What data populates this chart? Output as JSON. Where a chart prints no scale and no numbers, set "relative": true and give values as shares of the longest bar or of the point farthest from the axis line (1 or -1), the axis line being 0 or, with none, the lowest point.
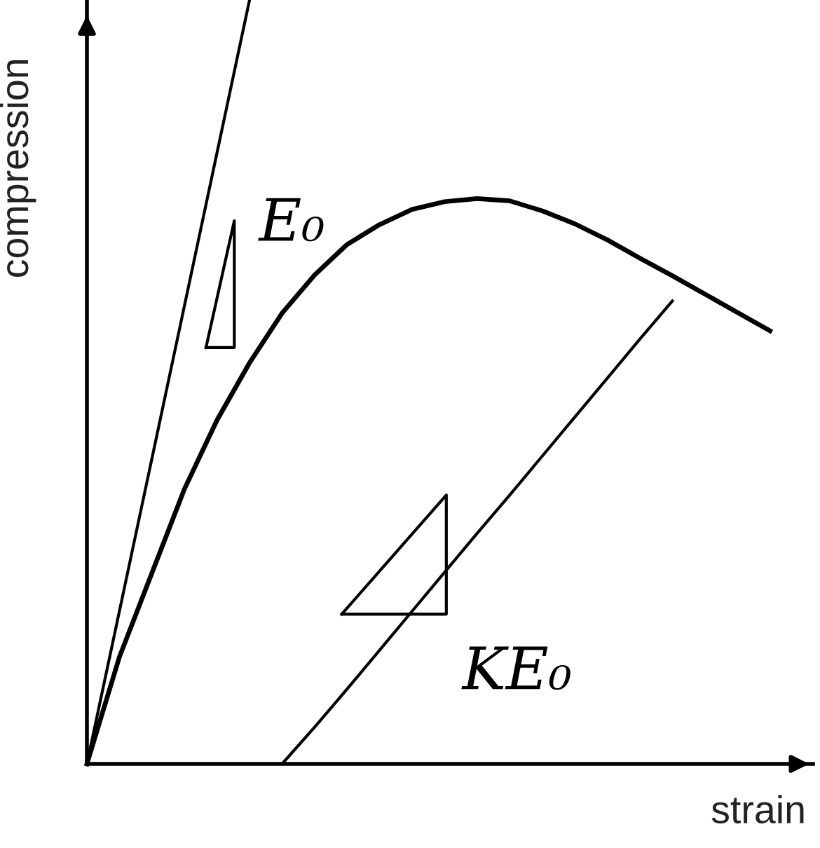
{
  "chart_data": {
    "type": "line",
    "relative": true,
    "xlabel": "strain",
    "ylabel": "compression",
    "categories": [
      null,
      null,
      null,
      null,
      null,
      null,
      null,
      null,
      null,
      null,
      null,
      null,
      null,
      null,
      null,
      null,
      null,
      null,
      null,
      null,
      null,
      null
    ],
    "series": [
      {
        "color": "#000000",
        "values": [
          0,
          0.14,
          0.25,
          0.36,
          0.45,
          0.525,
          0.59,
          0.64,
          0.68,
          0.706,
          0.726,
          0.736,
          0.74,
          0.737,
          0.724,
          0.707,
          0.686,
          0.662,
          0.639,
          0.615,
          0.591,
          0.567
        ]
      },
      {
        "color": "#000000",
        "values": [
          0,
          0.2,
          0.4,
          0.6,
          0.8,
          1,
          null,
          null,
          null,
          null,
          null,
          null,
          null,
          null,
          null,
          null,
          null,
          null,
          null,
          null,
          null,
          null
        ]
      },
      {
        "color": "#000000",
        "values": [
          null,
          null,
          null,
          null,
          null,
          null,
          0,
          0.048,
          0.098,
          0.149,
          0.2,
          0.251,
          0.302,
          0.352,
          0.403,
          0.454,
          0.505,
          0.556,
          0.606,
          null,
          null,
          null
        ]
      }
    ],
    "annotations": [
      "E₀",
      "KE₀"
    ],
    "marker": "none",
    "line_style": "solid"
  }
}
